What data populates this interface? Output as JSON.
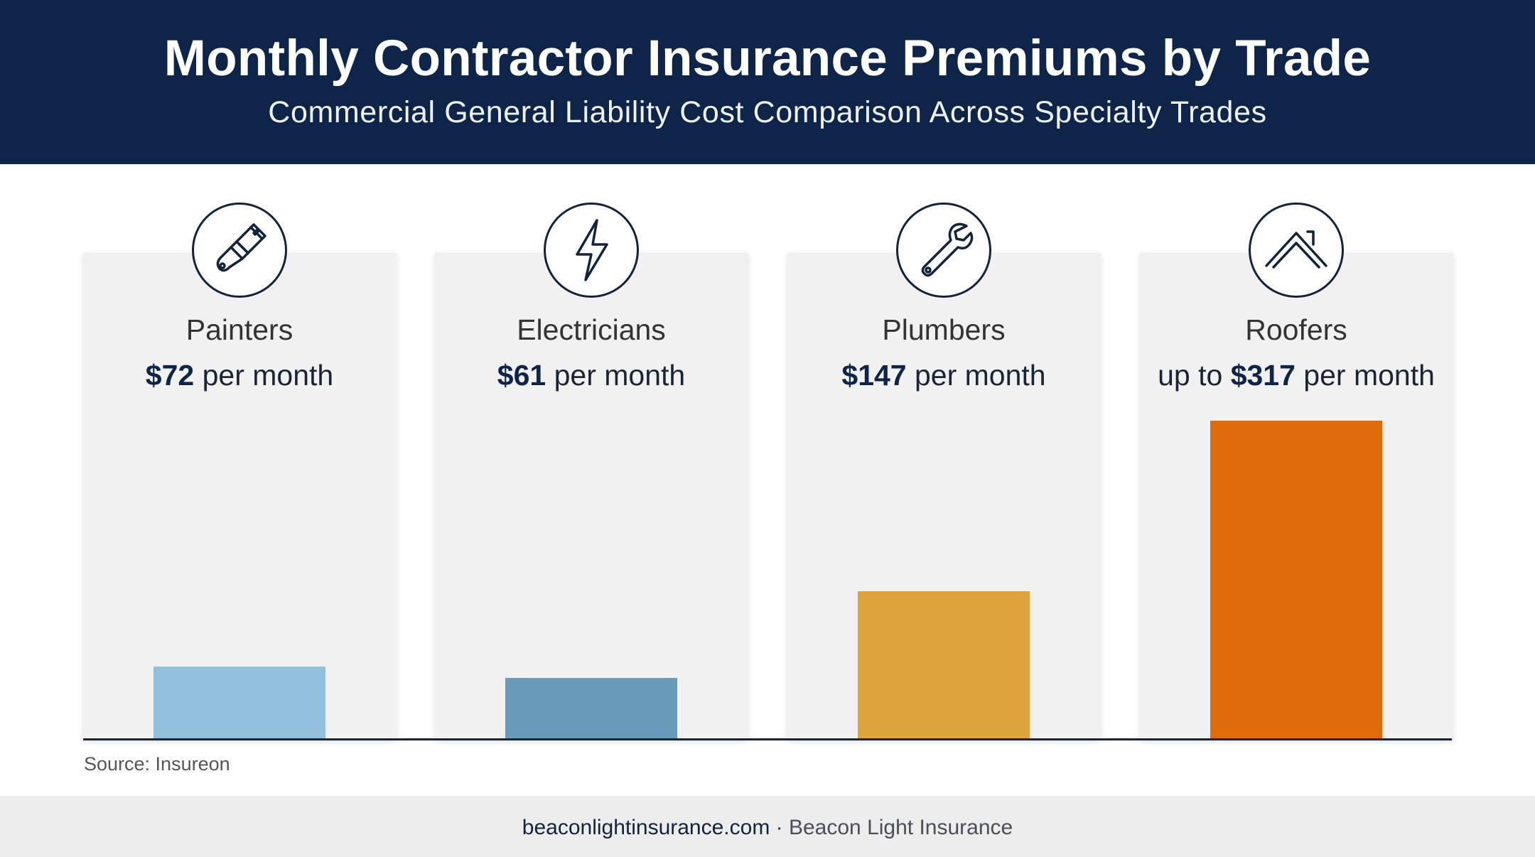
{
  "header": {
    "title": "Monthly Contractor Insurance Premiums by Trade",
    "subtitle": "Commercial General Liability Cost Comparison Across Specialty Trades"
  },
  "chart_data": {
    "type": "bar",
    "title": "Monthly Contractor Insurance Premiums by Trade",
    "subtitle": "Commercial General Liability Cost Comparison Across Specialty Trades",
    "categories": [
      "Painters",
      "Electricians",
      "Plumbers",
      "Roofers"
    ],
    "values": [
      72,
      61,
      147,
      317
    ],
    "value_labels": [
      {
        "prefix": "",
        "amount": "$72",
        "suffix": " per month"
      },
      {
        "prefix": "",
        "amount": "$61",
        "suffix": " per month"
      },
      {
        "prefix": "",
        "amount": "$147",
        "suffix": " per month"
      },
      {
        "prefix": "up to ",
        "amount": "$317",
        "suffix": " per month"
      }
    ],
    "icons": [
      "paintbrush-icon",
      "lightning-bolt-icon",
      "wrench-icon",
      "house-roof-icon"
    ],
    "colors": [
      "#93c1dd",
      "#6a9aba",
      "#dca43b",
      "#e06b0b"
    ],
    "ylim": [
      0,
      317
    ],
    "grid": false,
    "legend": "none"
  },
  "source": "Source: Insureon",
  "footer": {
    "site": "beaconlightinsurance.com",
    "separator": " · ",
    "brand": "Beacon Light Insurance"
  }
}
